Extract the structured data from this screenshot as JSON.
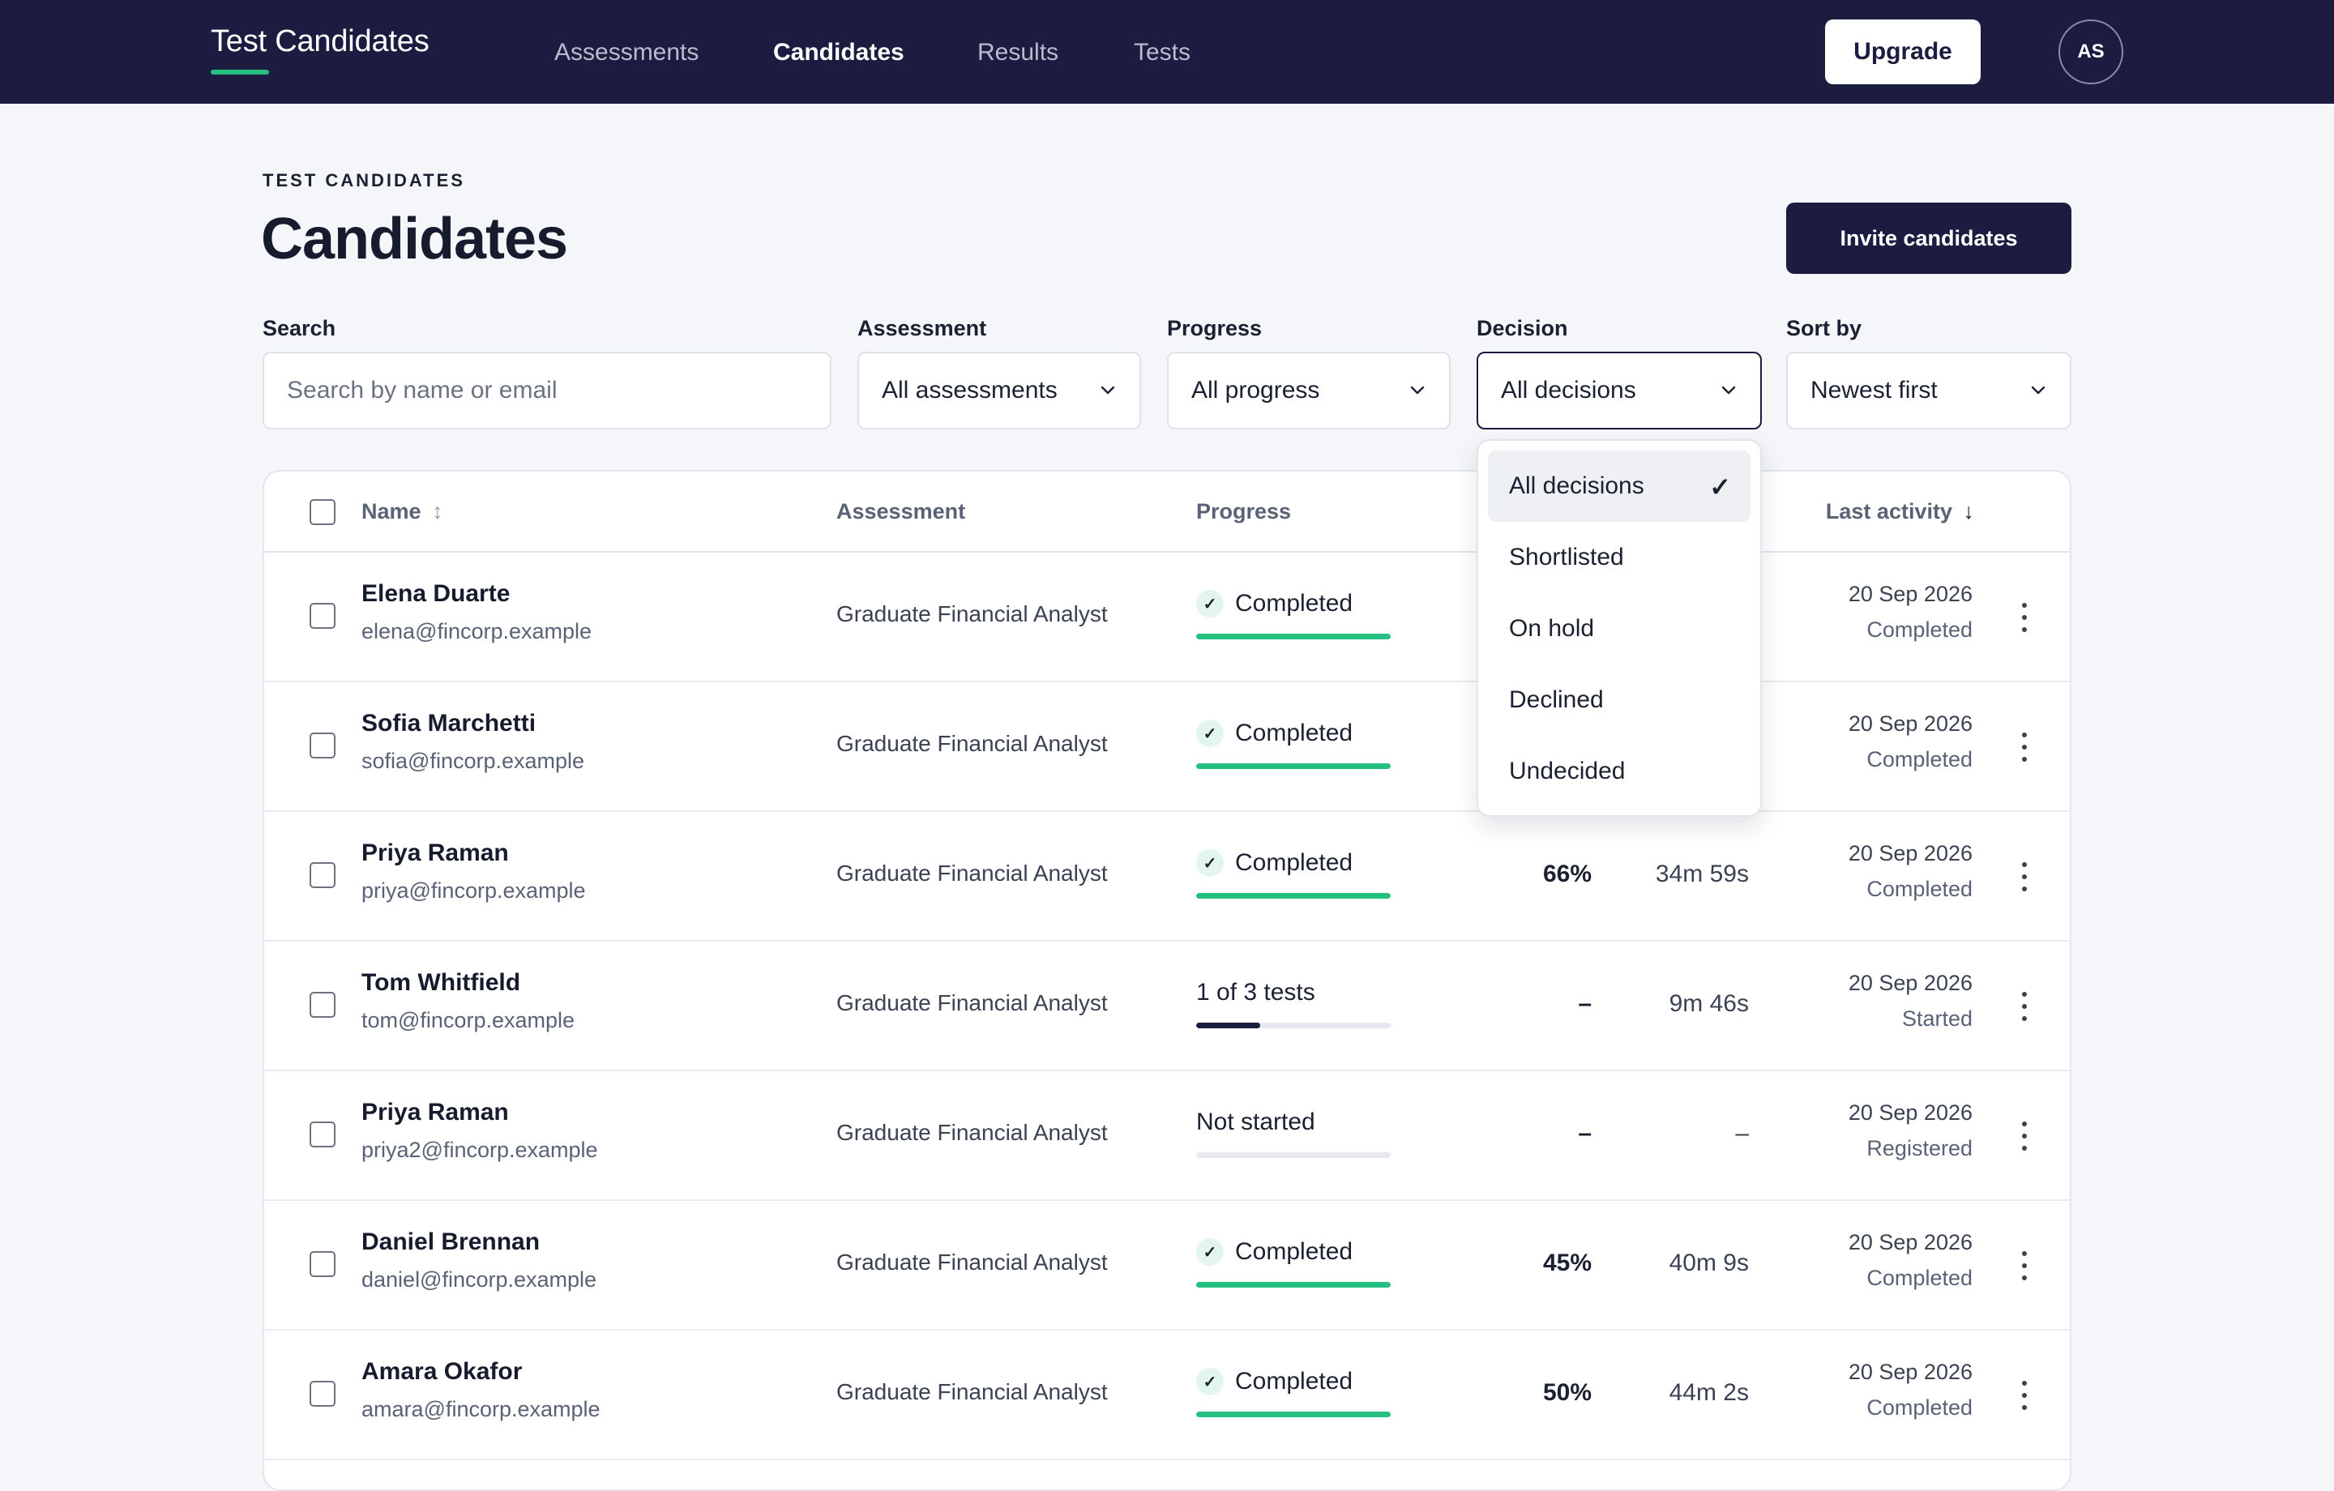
{
  "app": {
    "brand": "Test Candidates"
  },
  "nav": {
    "items": [
      {
        "label": "Assessments",
        "active": false
      },
      {
        "label": "Candidates",
        "active": true
      },
      {
        "label": "Results",
        "active": false
      },
      {
        "label": "Tests",
        "active": false
      }
    ],
    "upgrade_label": "Upgrade",
    "avatar_initials": "AS"
  },
  "header": {
    "eyebrow": "TEST CANDIDATES",
    "title": "Candidates",
    "invite_label": "Invite candidates"
  },
  "filters": {
    "search": {
      "label": "Search",
      "placeholder": "Search by name or email",
      "value": ""
    },
    "assessment": {
      "label": "Assessment",
      "value": "All assessments"
    },
    "progress": {
      "label": "Progress",
      "value": "All progress"
    },
    "decision": {
      "label": "Decision",
      "value": "All decisions"
    },
    "sort": {
      "label": "Sort by",
      "value": "Newest first"
    }
  },
  "decision_dropdown": {
    "options": [
      "All decisions",
      "Shortlisted",
      "On hold",
      "Declined",
      "Undecided"
    ],
    "selected": "All decisions"
  },
  "table": {
    "columns": {
      "name": "Name",
      "name_sort_icon": "↕",
      "assessment": "Assessment",
      "progress": "Progress",
      "last_activity": "Last activity",
      "last_activity_sort_icon": "↓"
    },
    "rows": [
      {
        "name": "Elena Duarte",
        "email": "elena@fincorp.example",
        "assessment": "Graduate Financial Analyst",
        "progress_text": "Completed",
        "completed": true,
        "progress_fraction": 1.0,
        "score": "",
        "time": "",
        "date": "20 Sep 2026",
        "status": "Completed"
      },
      {
        "name": "Sofia Marchetti",
        "email": "sofia@fincorp.example",
        "assessment": "Graduate Financial Analyst",
        "progress_text": "Completed",
        "completed": true,
        "progress_fraction": 1.0,
        "score": "",
        "time": "",
        "date": "20 Sep 2026",
        "status": "Completed"
      },
      {
        "name": "Priya Raman",
        "email": "priya@fincorp.example",
        "assessment": "Graduate Financial Analyst",
        "progress_text": "Completed",
        "completed": true,
        "progress_fraction": 1.0,
        "score": "66%",
        "time": "34m 59s",
        "date": "20 Sep 2026",
        "status": "Completed"
      },
      {
        "name": "Tom Whitfield",
        "email": "tom@fincorp.example",
        "assessment": "Graduate Financial Analyst",
        "progress_text": "1 of 3 tests",
        "completed": false,
        "progress_fraction": 0.333,
        "score": "–",
        "time": "9m 46s",
        "date": "20 Sep 2026",
        "status": "Started"
      },
      {
        "name": "Priya Raman",
        "email": "priya2@fincorp.example",
        "assessment": "Graduate Financial Analyst",
        "progress_text": "Not started",
        "completed": false,
        "progress_fraction": 0,
        "score": "–",
        "time": "–",
        "date": "20 Sep 2026",
        "status": "Registered"
      },
      {
        "name": "Daniel Brennan",
        "email": "daniel@fincorp.example",
        "assessment": "Graduate Financial Analyst",
        "progress_text": "Completed",
        "completed": true,
        "progress_fraction": 1.0,
        "score": "45%",
        "time": "40m 9s",
        "date": "20 Sep 2026",
        "status": "Completed"
      },
      {
        "name": "Amara Okafor",
        "email": "amara@fincorp.example",
        "assessment": "Graduate Financial Analyst",
        "progress_text": "Completed",
        "completed": true,
        "progress_fraction": 1.0,
        "score": "50%",
        "time": "44m 2s",
        "date": "20 Sep 2026",
        "status": "Completed"
      }
    ]
  },
  "colors": {
    "nav_bg": "#1b1c3f",
    "accent_green": "#24c07f",
    "progress_partial": "#1b1c3f",
    "page_bg": "#f4f6f9"
  },
  "icons": {
    "chevron": "chevron-down-icon",
    "check": "check-icon",
    "kebab": "more-vertical-icon"
  }
}
